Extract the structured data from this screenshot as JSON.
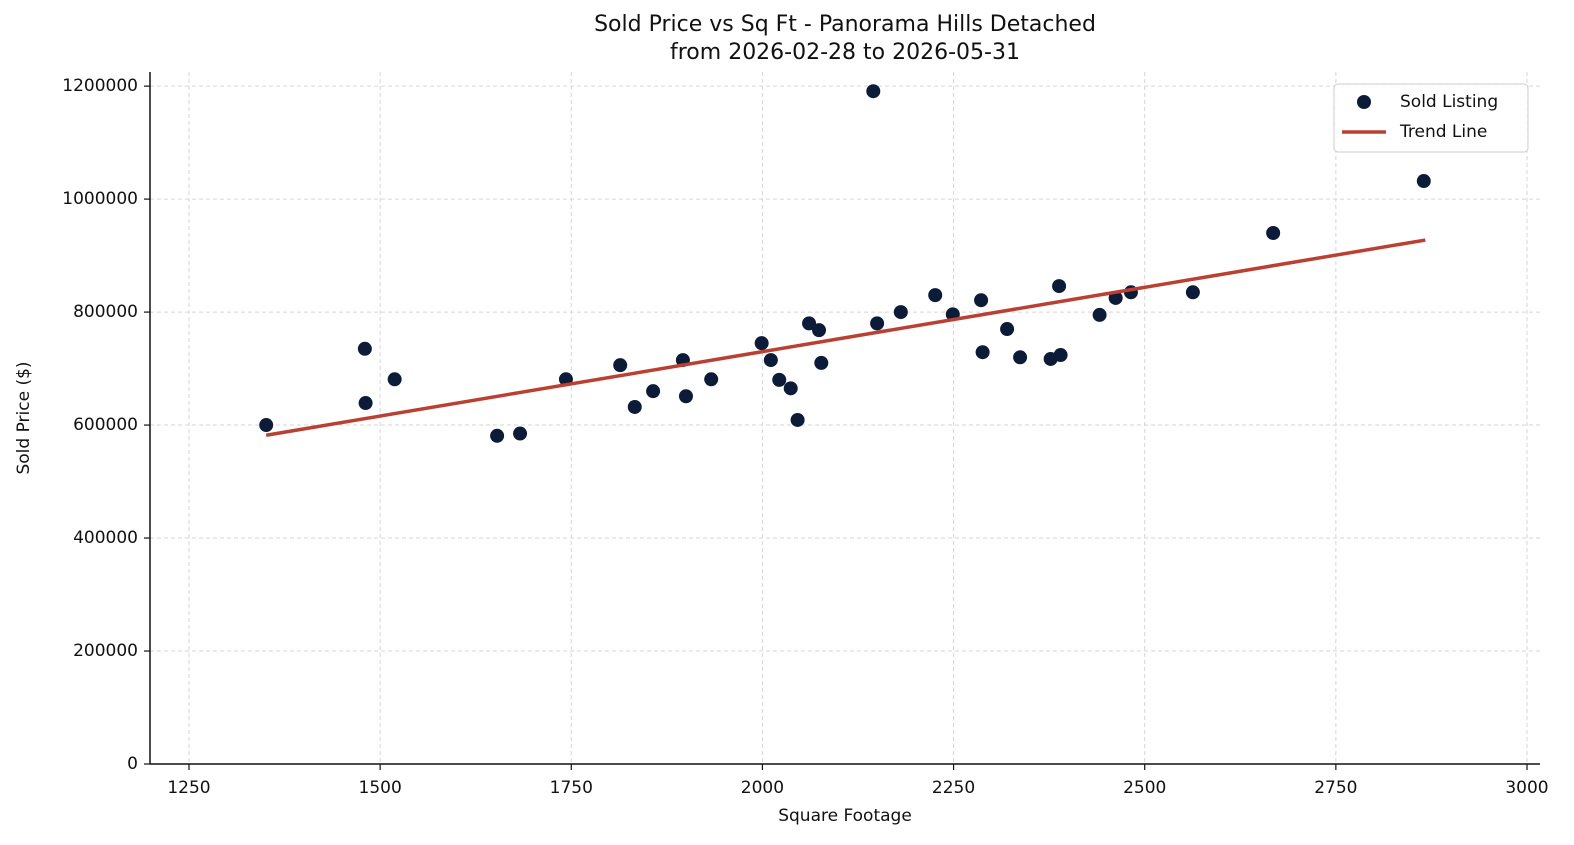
{
  "chart_data": {
    "type": "scatter",
    "title": "Sold Price vs Sq Ft - Panorama Hills Detached",
    "subtitle": "from 2026-02-28 to 2026-05-31",
    "x_label": "Square Footage",
    "y_label": "Sold Price ($)",
    "xlim": [
      1199,
      3017
    ],
    "ylim": [
      0,
      1225000
    ],
    "xticks": [
      1250,
      1500,
      1750,
      2000,
      2250,
      2500,
      2750,
      3000
    ],
    "yticks": [
      0,
      200000,
      400000,
      600000,
      800000,
      1000000,
      1200000
    ],
    "grid": true,
    "legend": "upper right",
    "series": [
      {
        "name": "Sold Listing",
        "type": "scatter",
        "color": "#0b1b38",
        "x": [
          1351,
          1480,
          1481,
          1519,
          1653,
          1683,
          1743,
          1814,
          1833,
          1857,
          1896,
          1900,
          1933,
          1999,
          2011,
          2022,
          2037,
          2046,
          2061,
          2074,
          2077,
          2145,
          2150,
          2181,
          2226,
          2249,
          2286,
          2288,
          2320,
          2337,
          2377,
          2388,
          2390,
          2441,
          2462,
          2482,
          2563,
          2668,
          2865
        ],
        "values": [
          600000,
          735000,
          639000,
          681000,
          581000,
          585000,
          681000,
          706000,
          632000,
          660000,
          715000,
          651000,
          681000,
          745000,
          715000,
          680000,
          665000,
          609000,
          780000,
          768000,
          710000,
          1191000,
          780000,
          800000,
          830000,
          796000,
          821000,
          729000,
          770000,
          720000,
          717000,
          846000,
          724000,
          795000,
          825000,
          835000,
          835000,
          940000,
          1032000
        ]
      },
      {
        "name": "Trend Line",
        "type": "line",
        "color": "#b94032",
        "x": [
          1351,
          2867
        ],
        "values": [
          582000,
          927500
        ]
      }
    ]
  }
}
